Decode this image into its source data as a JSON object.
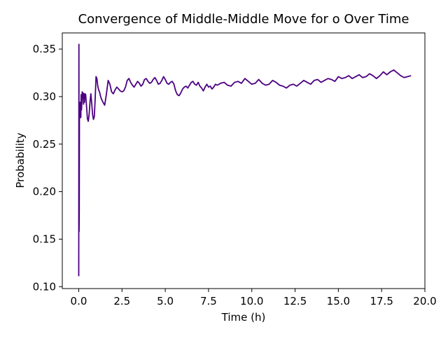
{
  "chart_data": {
    "type": "line",
    "title": "Convergence of Middle-Middle Move for o Over Time",
    "xlabel": "Time (h)",
    "ylabel": "Probability",
    "xlim": [
      -0.95,
      20.0
    ],
    "ylim": [
      0.098,
      0.367
    ],
    "xticks": [
      0.0,
      2.5,
      5.0,
      7.5,
      10.0,
      12.5,
      15.0,
      17.5,
      20.0
    ],
    "xtick_labels": [
      "0.0",
      "2.5",
      "5.0",
      "7.5",
      "10.0",
      "12.5",
      "15.0",
      "17.5",
      "20.0"
    ],
    "yticks": [
      0.1,
      0.15,
      0.2,
      0.25,
      0.3,
      0.35
    ],
    "ytick_labels": [
      "0.10",
      "0.15",
      "0.20",
      "0.25",
      "0.30",
      "0.35"
    ],
    "grid": false,
    "legend": "none",
    "series": [
      {
        "color": "#4b0082",
        "x": [
          0.0,
          0.01,
          0.02,
          0.03,
          0.04,
          0.05,
          0.06,
          0.07,
          0.08,
          0.1,
          0.12,
          0.14,
          0.16,
          0.18,
          0.2,
          0.22,
          0.25,
          0.28,
          0.3,
          0.33,
          0.36,
          0.4,
          0.45,
          0.5,
          0.55,
          0.6,
          0.65,
          0.7,
          0.75,
          0.8,
          0.85,
          0.9,
          0.95,
          1.0,
          1.05,
          1.1,
          1.15,
          1.2,
          1.25,
          1.3,
          1.35,
          1.4,
          1.5,
          1.6,
          1.7,
          1.8,
          1.9,
          2.0,
          2.1,
          2.2,
          2.3,
          2.4,
          2.5,
          2.6,
          2.7,
          2.8,
          2.9,
          3.0,
          3.1,
          3.2,
          3.3,
          3.4,
          3.5,
          3.6,
          3.7,
          3.8,
          3.9,
          4.0,
          4.1,
          4.2,
          4.3,
          4.4,
          4.5,
          4.6,
          4.7,
          4.8,
          4.9,
          5.0,
          5.1,
          5.2,
          5.3,
          5.4,
          5.5,
          5.6,
          5.7,
          5.8,
          5.9,
          6.0,
          6.1,
          6.2,
          6.3,
          6.4,
          6.5,
          6.6,
          6.7,
          6.8,
          6.9,
          7.0,
          7.1,
          7.2,
          7.3,
          7.4,
          7.5,
          7.6,
          7.7,
          7.8,
          7.9,
          8.0,
          8.2,
          8.4,
          8.6,
          8.8,
          9.0,
          9.2,
          9.4,
          9.6,
          9.8,
          10.0,
          10.2,
          10.4,
          10.6,
          10.8,
          11.0,
          11.2,
          11.4,
          11.6,
          11.8,
          12.0,
          12.2,
          12.4,
          12.6,
          12.8,
          13.0,
          13.2,
          13.4,
          13.6,
          13.8,
          14.0,
          14.2,
          14.4,
          14.6,
          14.8,
          15.0,
          15.2,
          15.4,
          15.6,
          15.8,
          16.0,
          16.2,
          16.4,
          16.6,
          16.8,
          17.0,
          17.2,
          17.4,
          17.6,
          17.8,
          18.0,
          18.2,
          18.4,
          18.6,
          18.8,
          19.0,
          19.2
        ],
        "y": [
          0.111,
          0.355,
          0.158,
          0.18,
          0.28,
          0.277,
          0.293,
          0.279,
          0.294,
          0.281,
          0.278,
          0.302,
          0.286,
          0.294,
          0.305,
          0.299,
          0.304,
          0.292,
          0.303,
          0.294,
          0.303,
          0.302,
          0.29,
          0.277,
          0.274,
          0.281,
          0.294,
          0.303,
          0.293,
          0.281,
          0.276,
          0.279,
          0.298,
          0.321,
          0.319,
          0.311,
          0.307,
          0.305,
          0.301,
          0.298,
          0.296,
          0.294,
          0.291,
          0.303,
          0.317,
          0.313,
          0.305,
          0.303,
          0.307,
          0.31,
          0.308,
          0.306,
          0.305,
          0.306,
          0.31,
          0.317,
          0.319,
          0.315,
          0.312,
          0.31,
          0.313,
          0.316,
          0.314,
          0.311,
          0.313,
          0.318,
          0.319,
          0.316,
          0.314,
          0.315,
          0.318,
          0.32,
          0.317,
          0.313,
          0.314,
          0.317,
          0.321,
          0.318,
          0.314,
          0.313,
          0.315,
          0.316,
          0.313,
          0.306,
          0.302,
          0.301,
          0.304,
          0.308,
          0.31,
          0.311,
          0.309,
          0.312,
          0.315,
          0.316,
          0.313,
          0.312,
          0.315,
          0.311,
          0.309,
          0.306,
          0.31,
          0.313,
          0.31,
          0.311,
          0.308,
          0.31,
          0.313,
          0.312,
          0.314,
          0.315,
          0.312,
          0.311,
          0.315,
          0.316,
          0.314,
          0.319,
          0.316,
          0.313,
          0.314,
          0.318,
          0.314,
          0.312,
          0.313,
          0.317,
          0.315,
          0.312,
          0.311,
          0.309,
          0.312,
          0.313,
          0.311,
          0.314,
          0.317,
          0.315,
          0.313,
          0.317,
          0.318,
          0.315,
          0.317,
          0.319,
          0.318,
          0.316,
          0.321,
          0.319,
          0.32,
          0.322,
          0.319,
          0.321,
          0.323,
          0.32,
          0.321,
          0.324,
          0.322,
          0.319,
          0.322,
          0.326,
          0.323,
          0.326,
          0.328,
          0.325,
          0.322,
          0.32,
          0.321,
          0.322
        ]
      }
    ]
  }
}
